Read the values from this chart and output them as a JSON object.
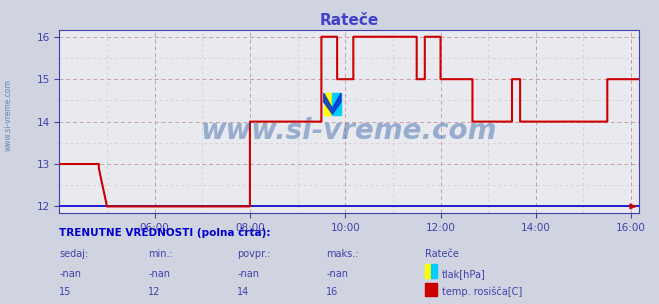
{
  "title": "Rateče",
  "bg_color": "#d0d4e0",
  "plot_bg_color": "#e8eaf0",
  "grid_color_major": "#c8a0a0",
  "grid_color_minor": "#d8c8c8",
  "title_color": "#4040cc",
  "tick_color": "#4040aa",
  "ylim_min": 11.85,
  "ylim_max": 16.15,
  "yticks": [
    12,
    13,
    14,
    15,
    16
  ],
  "xticks_labels": [
    "06:00",
    "08:00",
    "10:00",
    "12:00",
    "14:00",
    "16:00"
  ],
  "xticks_pos": [
    6,
    8,
    10,
    12,
    14,
    16
  ],
  "xmin": 4.0,
  "xmax": 16.17,
  "watermark": "www.si-vreme.com",
  "watermark_color": "#2050a0",
  "watermark_alpha": 0.4,
  "ylabel_text": "www.si-vreme.com",
  "legend_title": "Rateče",
  "bottom_text": "TRENUTNE VREDNOSTI (polna črta):",
  "bottom_headers": [
    "sedaj:",
    "min.:",
    "povpr.:",
    "maks.:"
  ],
  "bottom_row1": [
    "-nan",
    "-nan",
    "-nan",
    "-nan"
  ],
  "bottom_row2": [
    "15",
    "12",
    "14",
    "16"
  ],
  "legend_label1": "tlak[hPa]",
  "legend_label2": "temp. rosišča[C]",
  "red_x": [
    4.0,
    4.83,
    4.83,
    5.0,
    5.0,
    8.0,
    8.0,
    9.5,
    9.5,
    9.83,
    9.83,
    10.17,
    10.17,
    11.5,
    11.5,
    11.67,
    11.67,
    12.0,
    12.0,
    12.67,
    12.67,
    13.5,
    13.5,
    13.67,
    13.67,
    13.83,
    13.83,
    15.5,
    15.5,
    16.17
  ],
  "red_y": [
    13.0,
    13.0,
    12.9,
    12.0,
    12.0,
    12.0,
    14.0,
    14.0,
    16.0,
    16.0,
    15.0,
    15.0,
    16.0,
    16.0,
    15.0,
    15.0,
    16.0,
    16.0,
    15.0,
    15.0,
    14.0,
    14.0,
    15.0,
    15.0,
    14.0,
    14.0,
    14.0,
    14.0,
    15.0,
    15.0
  ],
  "blue_line_color": "#0000cc",
  "red_line_color": "#cc0000"
}
